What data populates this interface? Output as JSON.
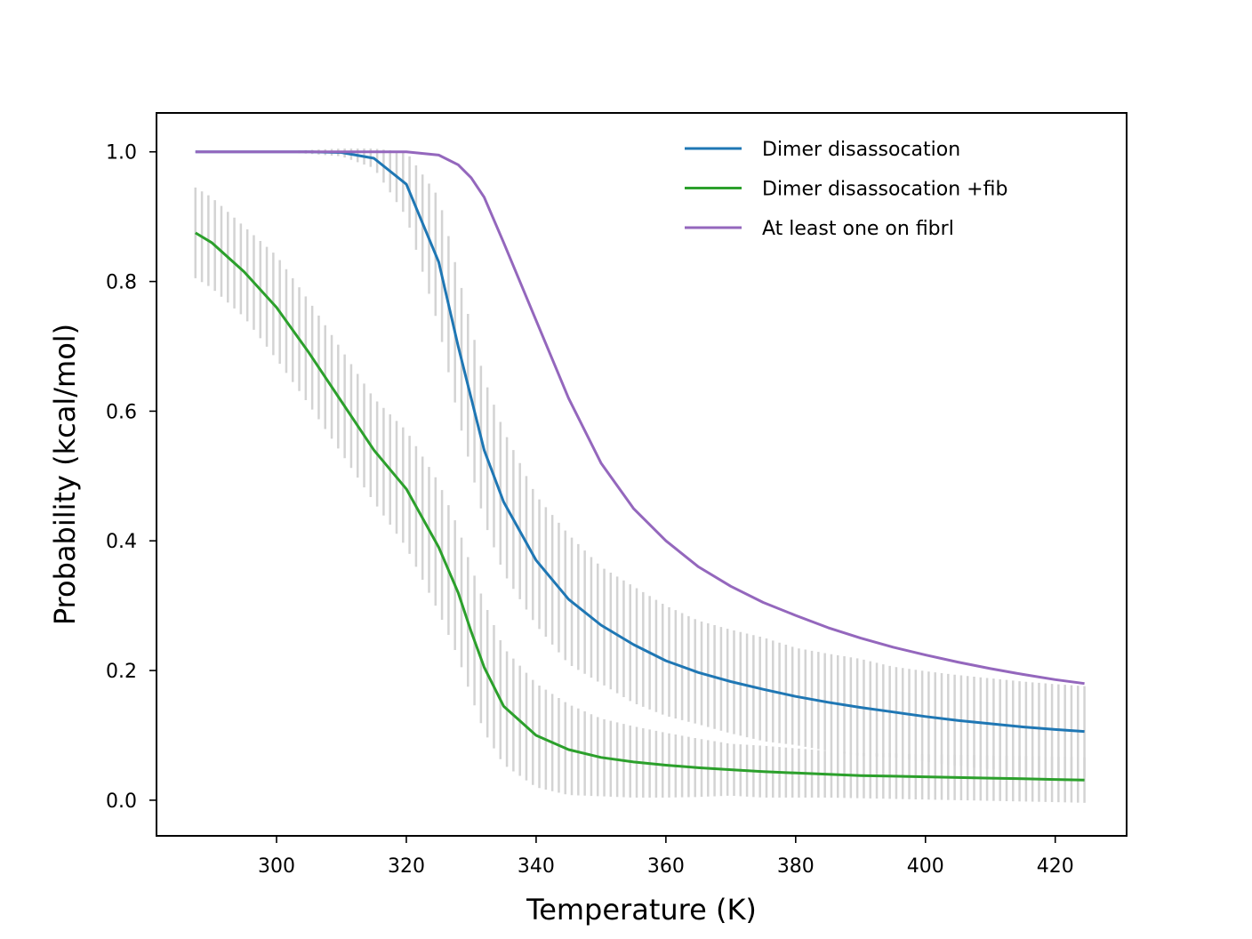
{
  "chart_data": {
    "type": "line",
    "title": "",
    "xlabel": "Temperature (K)",
    "ylabel": "Probability (kcal/mol)",
    "xlim": [
      281.5,
      431.0
    ],
    "ylim": [
      -0.055,
      1.06
    ],
    "xticks": [
      300,
      320,
      340,
      360,
      380,
      400,
      420
    ],
    "yticks": [
      0.0,
      0.2,
      0.4,
      0.6,
      0.8,
      1.0
    ],
    "xtick_labels": [
      "300",
      "320",
      "340",
      "360",
      "380",
      "400",
      "420"
    ],
    "ytick_labels": [
      "0.0",
      "0.2",
      "0.4",
      "0.6",
      "0.8",
      "1.0"
    ],
    "grid": false,
    "legend_position": "top-right",
    "errorbars": true,
    "errorbar_color": "#d3d3d3",
    "x": [
      287.5,
      290,
      295,
      300,
      305,
      310,
      315,
      320,
      325,
      328,
      330,
      332,
      335,
      340,
      345,
      350,
      355,
      360,
      365,
      370,
      375,
      380,
      385,
      390,
      395,
      400,
      405,
      410,
      415,
      420,
      424.5
    ],
    "series": [
      {
        "name": "Dimer disassocation",
        "color": "#1f77b4",
        "values": [
          1.0,
          1.0,
          1.0,
          1.0,
          1.0,
          0.999,
          0.99,
          0.95,
          0.83,
          0.7,
          0.62,
          0.54,
          0.46,
          0.37,
          0.31,
          0.27,
          0.24,
          0.215,
          0.197,
          0.183,
          0.171,
          0.16,
          0.151,
          0.143,
          0.136,
          0.129,
          0.123,
          0.118,
          0.113,
          0.109,
          0.106
        ],
        "err": [
          0.0,
          0.0,
          0.0,
          0.0,
          0.003,
          0.006,
          0.015,
          0.05,
          0.1,
          0.11,
          0.11,
          0.11,
          0.11,
          0.1,
          0.1,
          0.09,
          0.09,
          0.085,
          0.08,
          0.08,
          0.08,
          0.075,
          0.075,
          0.075,
          0.07,
          0.07,
          0.07,
          0.07,
          0.07,
          0.07,
          0.07
        ]
      },
      {
        "name": "Dimer disassocation +fib",
        "color": "#2ca02c",
        "values": [
          0.875,
          0.86,
          0.815,
          0.76,
          0.69,
          0.615,
          0.54,
          0.48,
          0.39,
          0.32,
          0.26,
          0.205,
          0.145,
          0.1,
          0.078,
          0.066,
          0.059,
          0.054,
          0.05,
          0.047,
          0.044,
          0.042,
          0.04,
          0.038,
          0.037,
          0.036,
          0.035,
          0.034,
          0.033,
          0.032,
          0.031
        ],
        "err": [
          0.07,
          0.07,
          0.07,
          0.08,
          0.08,
          0.08,
          0.08,
          0.09,
          0.1,
          0.1,
          0.1,
          0.1,
          0.09,
          0.08,
          0.07,
          0.06,
          0.055,
          0.05,
          0.045,
          0.04,
          0.04,
          0.038,
          0.036,
          0.035,
          0.035,
          0.035,
          0.035,
          0.035,
          0.035,
          0.035,
          0.035
        ]
      },
      {
        "name": "At least one on fibrl",
        "color": "#9467bd",
        "values": [
          1.0,
          1.0,
          1.0,
          1.0,
          1.0,
          1.0,
          1.0,
          1.0,
          0.995,
          0.98,
          0.96,
          0.93,
          0.86,
          0.74,
          0.62,
          0.52,
          0.45,
          0.4,
          0.36,
          0.33,
          0.305,
          0.285,
          0.266,
          0.25,
          0.236,
          0.224,
          0.213,
          0.203,
          0.194,
          0.186,
          0.18
        ]
      }
    ]
  }
}
